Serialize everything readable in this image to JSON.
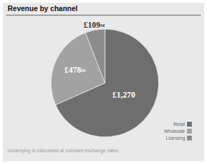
{
  "chart_data": {
    "type": "pie",
    "title": "Revenue by channel",
    "categories": [
      "Retail",
      "Wholesale",
      "Licensing"
    ],
    "values": [
      1270,
      478,
      109
    ],
    "value_labels": [
      "£1,270",
      "£478M",
      "£109M"
    ],
    "colors": [
      "#6e6e6e",
      "#a2a2a2",
      "#8c8c8c"
    ],
    "data_labels": true,
    "legend": "lower right",
    "footnote": "Underlying is calculated at constant exchange rates"
  }
}
